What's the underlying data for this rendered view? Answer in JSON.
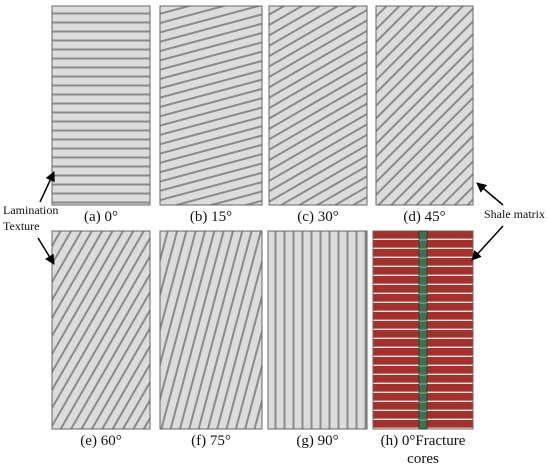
{
  "panels": [
    {
      "label": "(a) 0°",
      "angle": 0
    },
    {
      "label": "(b) 15°",
      "angle": 15
    },
    {
      "label": "(c) 30°",
      "angle": 30
    },
    {
      "label": "(d) 45°",
      "angle": 45
    },
    {
      "label": "(e) 60°",
      "angle": 60
    },
    {
      "label": "(f) 75°",
      "angle": 75
    },
    {
      "label": "(g) 90°",
      "angle": 90
    },
    {
      "label": "(h) 0°Fracture",
      "label2": "cores",
      "angle": 0
    }
  ],
  "annotations": {
    "lamination": [
      "Lamination",
      "Texture"
    ],
    "shale": "Shale matrix"
  }
}
